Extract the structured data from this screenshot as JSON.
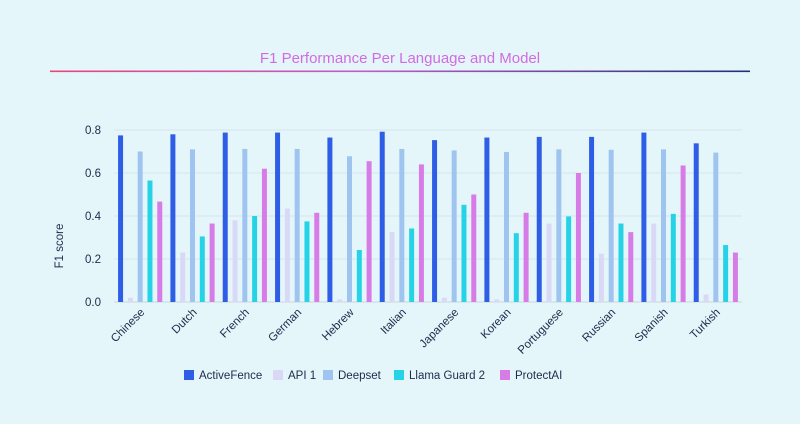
{
  "chart_data": {
    "type": "bar",
    "title": "F1 Performance Per Language and Model",
    "xlabel": "",
    "ylabel": "F1 score",
    "ylim": [
      0,
      0.8
    ],
    "yticks": [
      0,
      0.2,
      0.4,
      0.6,
      0.8
    ],
    "ytick_labels": [
      "0.0",
      "0.2",
      "0.4",
      "0.6",
      "0.8"
    ],
    "grid": true,
    "legend_position": "bottom",
    "categories": [
      "Chinese",
      "Dutch",
      "French",
      "German",
      "Hebrew",
      "Italian",
      "Japanese",
      "Korean",
      "Portuguese",
      "Russian",
      "Spanish",
      "Turkish"
    ],
    "series": [
      {
        "name": "ActiveFence",
        "color": "#2f5ee6",
        "values": [
          0.775,
          0.78,
          0.788,
          0.788,
          0.765,
          0.792,
          0.753,
          0.765,
          0.768,
          0.768,
          0.788,
          0.738
        ]
      },
      {
        "name": "API 1",
        "color": "#d9d9f7",
        "values": [
          0.02,
          0.23,
          0.38,
          0.435,
          0.012,
          0.325,
          0.02,
          0.012,
          0.365,
          0.225,
          0.365,
          0.035
        ]
      },
      {
        "name": "Deepset",
        "color": "#9ec4ef",
        "values": [
          0.7,
          0.71,
          0.712,
          0.712,
          0.678,
          0.712,
          0.705,
          0.698,
          0.71,
          0.708,
          0.71,
          0.695
        ]
      },
      {
        "name": "Llama Guard 2",
        "color": "#26d3e6",
        "values": [
          0.565,
          0.305,
          0.4,
          0.375,
          0.242,
          0.342,
          0.452,
          0.32,
          0.398,
          0.365,
          0.41,
          0.265
        ]
      },
      {
        "name": "ProtectAI",
        "color": "#d77be6",
        "values": [
          0.467,
          0.365,
          0.62,
          0.415,
          0.655,
          0.64,
          0.5,
          0.415,
          0.6,
          0.325,
          0.635,
          0.23
        ]
      }
    ]
  }
}
